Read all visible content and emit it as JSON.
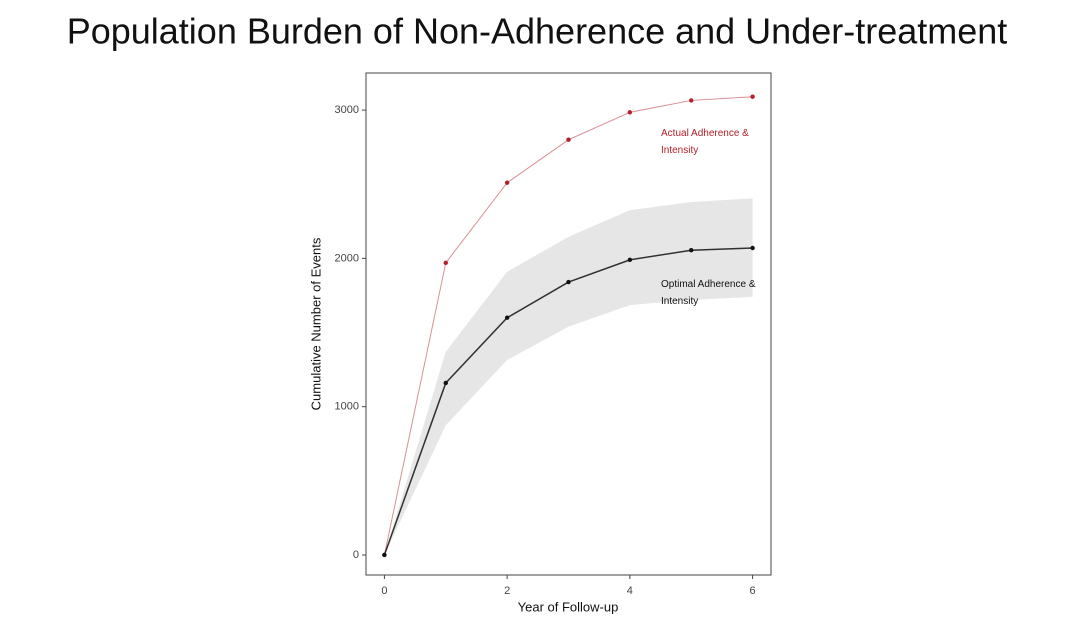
{
  "chart_data": {
    "type": "line",
    "title": "Population Burden of Non-Adherence and Under-treatment",
    "x_label": "Year of Follow-up",
    "y_label": "Cumulative Number of Events",
    "x": [
      0,
      1,
      2,
      3,
      4,
      5,
      6
    ],
    "series": [
      {
        "name": "Actual Adherence & Intensity",
        "color": "#b3202a",
        "values": [
          0,
          1970,
          2510,
          2800,
          2985,
          3065,
          3090
        ]
      },
      {
        "name": "Optimal Adherence & Intensity",
        "color": "#111111",
        "values": [
          0,
          1160,
          1600,
          1840,
          1990,
          2055,
          2070
        ]
      }
    ],
    "band": {
      "color": "#e6e6e6",
      "lower": [
        0,
        875,
        1315,
        1540,
        1685,
        1720,
        1740
      ],
      "upper": [
        0,
        1370,
        1910,
        2145,
        2325,
        2380,
        2405
      ]
    },
    "xlim": [
      -0.3,
      6.3
    ],
    "ylim": [
      -135,
      3250
    ],
    "xticks": [
      0,
      2,
      4,
      6
    ],
    "yticks": [
      0,
      1000,
      2000,
      3000
    ],
    "grid": false
  }
}
